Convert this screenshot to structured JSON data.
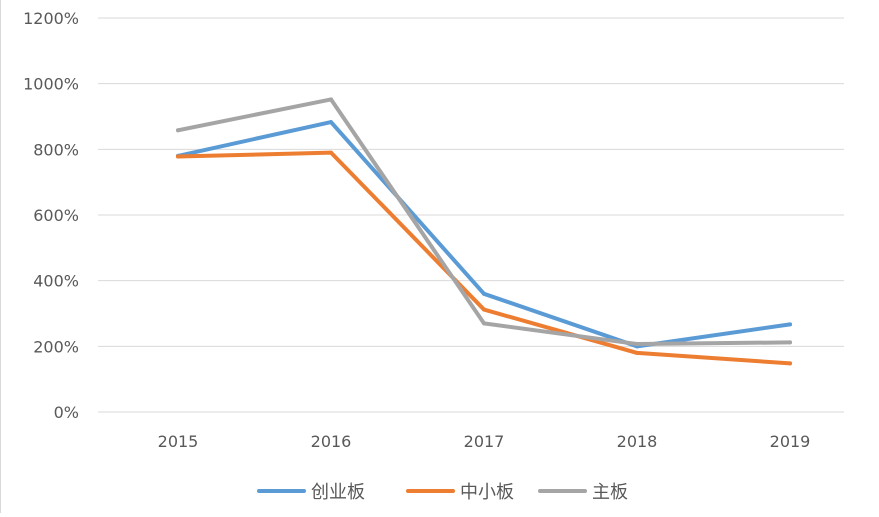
{
  "chart_data": {
    "type": "line",
    "title": "",
    "xlabel": "",
    "ylabel": "",
    "categories": [
      "2015",
      "2016",
      "2017",
      "2018",
      "2019"
    ],
    "y_tick_labels": [
      "0%",
      "200%",
      "400%",
      "600%",
      "800%",
      "1000%",
      "1200%"
    ],
    "y_ticks": [
      0,
      200,
      400,
      600,
      800,
      1000,
      1200
    ],
    "ylim": [
      0,
      1200
    ],
    "y_unit": "%",
    "grid": true,
    "legend_position": "bottom",
    "series": [
      {
        "name": "创业板",
        "color": "#5B9BD5",
        "values": [
          780,
          883,
          360,
          200,
          267
        ]
      },
      {
        "name": "中小板",
        "color": "#ED7D31",
        "values": [
          778,
          790,
          312,
          180,
          148
        ]
      },
      {
        "name": "主板",
        "color": "#A5A5A5",
        "values": [
          858,
          952,
          270,
          207,
          212
        ]
      }
    ]
  }
}
